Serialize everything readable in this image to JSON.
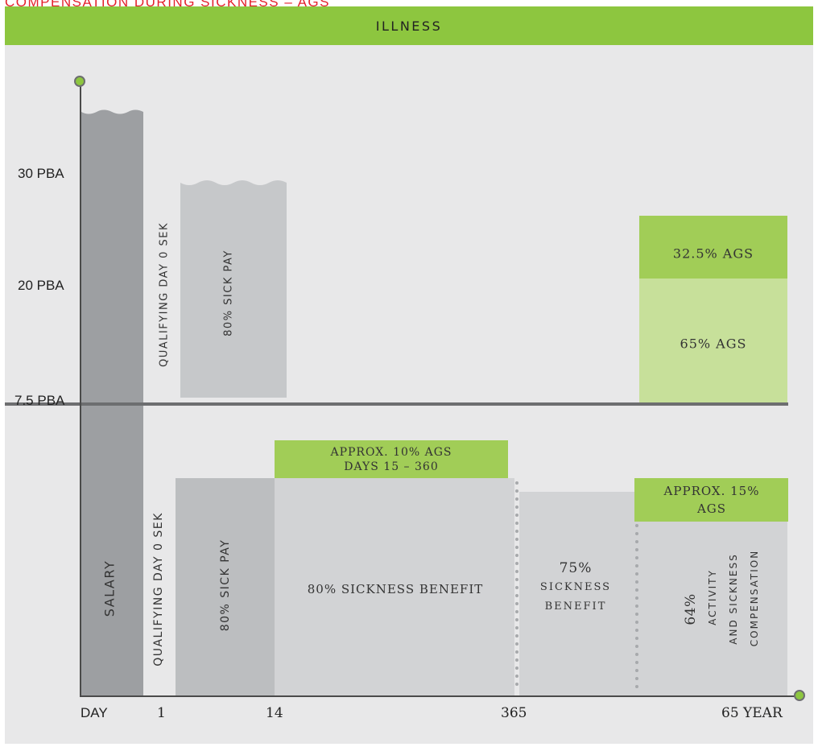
{
  "title": "COMPENSATION DURING SICKNESS – AGS",
  "header": "ILLNESS",
  "y_axis": {
    "label_30": "30 PBA",
    "label_20": "20 PBA",
    "label_7_5": "7.5 PBA"
  },
  "x_axis": {
    "day": "DAY",
    "one": "1",
    "fourteen": "14",
    "three65": "365",
    "sixty_five": "65 YEAR"
  },
  "upper": {
    "qualifying": "QUALIFYING DAY 0 SEK",
    "sick_pay": "80% SICK PAY",
    "ags_325": "32.5% AGS",
    "ags_65": "65% AGS"
  },
  "lower": {
    "salary": "SALARY",
    "qualifying": "QUALIFYING DAY 0 SEK",
    "sick_pay": "80% SICK PAY",
    "approx10_line1": "APPROX. 10% AGS",
    "approx10_line2": "DAYS 15 – 360",
    "sickness80": "80% SICKNESS BENEFIT",
    "sickness75_pct": "75%",
    "sickness75_l1": "SICKNESS",
    "sickness75_l2": "BENEFIT",
    "approx15_line1": "APPROX. 15%",
    "approx15_line2": "AGS",
    "activity_pct": "64%",
    "activity_l1": "ACTIVITY",
    "activity_l2": "AND SICKNESS",
    "activity_l3": "COMPENSATION"
  },
  "colors": {
    "accent_green": "#8dc63f",
    "light_green": "#c7e09a",
    "dark_gray": "#9d9fa2",
    "mid_gray": "#bcbec0",
    "light_gray": "#d2d3d5",
    "title_red": "#e4202b"
  }
}
